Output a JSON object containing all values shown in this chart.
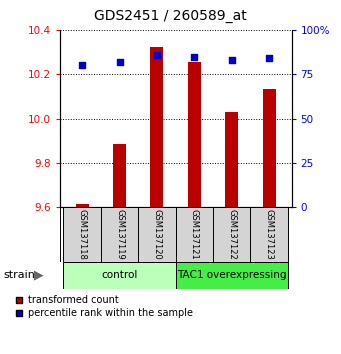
{
  "title": "GDS2451 / 260589_at",
  "samples": [
    "GSM137118",
    "GSM137119",
    "GSM137120",
    "GSM137121",
    "GSM137122",
    "GSM137123"
  ],
  "transformed_counts": [
    9.614,
    9.886,
    10.325,
    10.255,
    10.03,
    10.135
  ],
  "percentile_ranks": [
    80,
    82,
    86,
    85,
    83,
    84
  ],
  "ylim_left": [
    9.6,
    10.4
  ],
  "ylim_right": [
    0,
    100
  ],
  "yticks_left": [
    9.6,
    9.8,
    10.0,
    10.2,
    10.4
  ],
  "yticks_right": [
    0,
    25,
    50,
    75,
    100
  ],
  "bar_color": "#bb0000",
  "dot_color": "#0000cc",
  "bar_bottom": 9.6,
  "groups": [
    {
      "label": "control",
      "color": "#bbffbb"
    },
    {
      "label": "TAC1 overexpressing",
      "color": "#44ee44"
    }
  ],
  "group_label": "strain",
  "legend_bar_label": "transformed count",
  "legend_dot_label": "percentile rank within the sample"
}
